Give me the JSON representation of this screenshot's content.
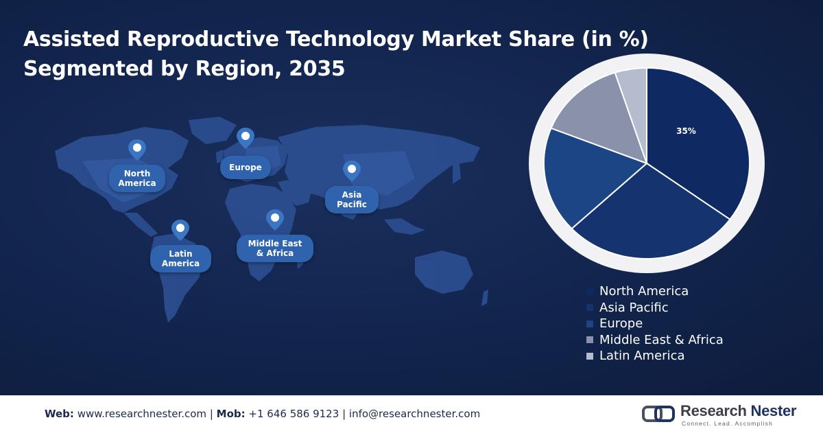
{
  "header": {
    "title_line1": "Assisted Reproductive Technology Market Share (in %)",
    "title_line2": "Segmented by Region, 2035"
  },
  "map": {
    "regions": [
      "North America",
      "Europe",
      "Asia Pacific",
      "Latin America",
      "Middle East & Africa"
    ],
    "labels": {
      "north_america": [
        "North",
        "America"
      ],
      "europe": [
        "Europe"
      ],
      "asia_pacific": [
        "Asia",
        "Pacific"
      ],
      "latin_america": [
        "Latin",
        "America"
      ],
      "middle_east_africa": [
        "Middle East",
        "& Africa"
      ]
    }
  },
  "chart_data": {
    "type": "pie",
    "title": "",
    "categories": [
      "North America",
      "Asia Pacific",
      "Europe",
      "Middle East & Africa",
      "Latin America"
    ],
    "values": [
      35,
      28,
      18,
      14,
      5
    ],
    "data_labels": [
      "35%",
      "",
      "",
      "",
      ""
    ],
    "colors": [
      "#0f2a63",
      "#14336f",
      "#1b4585",
      "#8a92ab",
      "#b5bccd"
    ],
    "start_angle_deg": 0,
    "direction": "clockwise",
    "legend_position": "bottom-right"
  },
  "footer": {
    "web_label": "Web:",
    "web_value": "www.researchnester.com",
    "sep1": "|",
    "mob_label": "Mob:",
    "mob_value": "+1 646 586 9123",
    "sep2": "|",
    "email": "info@researchnester.com",
    "logo_name_part1": "Research",
    "logo_name_part2": "Nester",
    "logo_tagline": "Connect. Lead. Accomplish"
  },
  "colors": {
    "background": "#132650",
    "label_pill": "#2f63ad",
    "map_fill": "#2b4d8f"
  },
  "icons": [
    "location-pin-icon",
    "research-nester-logo-icon"
  ]
}
